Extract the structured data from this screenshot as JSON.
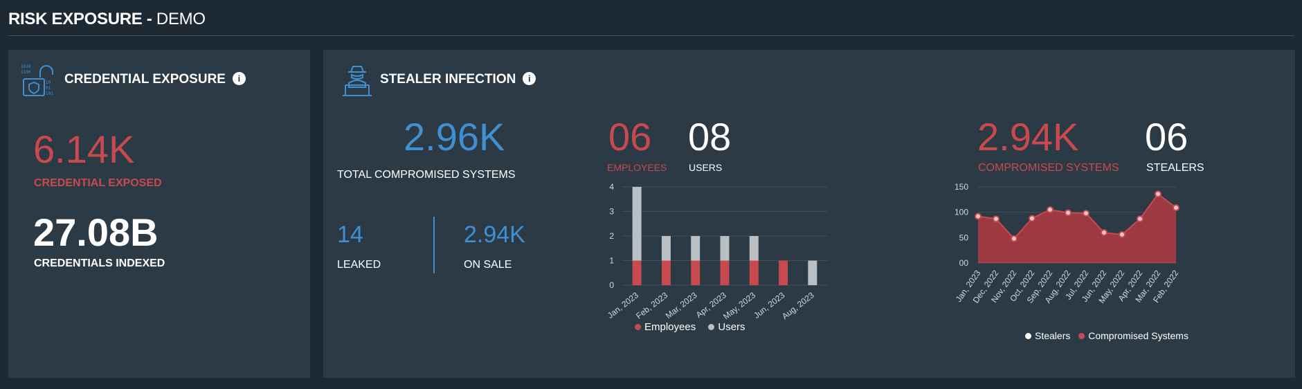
{
  "header": {
    "title_strong": "RISK EXPOSURE - ",
    "title_light": "DEMO"
  },
  "credential_exposure": {
    "title": "CREDENTIAL EXPOSURE",
    "icon": "credential-lock-icon",
    "exposed_value": "6.14K",
    "exposed_label": "CREDENTIAL EXPOSED",
    "indexed_value": "27.08B",
    "indexed_label": "CREDENTIALS INDEXED"
  },
  "stealer_infection": {
    "title": "STEALER INFECTION",
    "icon": "hacker-laptop-icon",
    "total_value": "2.96K",
    "total_label": "TOTAL COMPROMISED SYSTEMS",
    "leaked_value": "14",
    "leaked_label": "LEAKED",
    "on_sale_value": "2.94K",
    "on_sale_label": "ON SALE",
    "employees_value": "06",
    "employees_label": "EMPLOYEES",
    "users_value": "08",
    "users_label": "USERS",
    "compromised_value": "2.94K",
    "compromised_label": "COMPROMISED SYSTEMS",
    "stealers_value": "06",
    "stealers_label": "STEALERS"
  },
  "colors": {
    "red": "#c94a4e",
    "blue": "#3f8fd2",
    "gray": "#b9bfc3",
    "panel": "#2b3a45",
    "background": "#1e2a33"
  },
  "chart_data": [
    {
      "type": "bar",
      "stacked": true,
      "categories": [
        "Jan, 2023",
        "Feb, 2023",
        "Mar, 2023",
        "Apr, 2023",
        "May, 2023",
        "Jun, 2023",
        "Aug, 2023"
      ],
      "series": [
        {
          "name": "Employees",
          "values": [
            1,
            1,
            1,
            1,
            1,
            1,
            0
          ],
          "color": "#c94a4e"
        },
        {
          "name": "Users",
          "values": [
            3,
            1,
            1,
            1,
            1,
            0,
            1
          ],
          "color": "#b9bfc3"
        }
      ],
      "ylim": [
        0,
        4
      ],
      "yticks": [
        0,
        1,
        2,
        3,
        4
      ],
      "grid": true,
      "legend": "bottom"
    },
    {
      "type": "area",
      "categories": [
        "Jan, 2023",
        "Dec, 2022",
        "Nov, 2022",
        "Oct, 2022",
        "Sep, 2022",
        "Aug, 2022",
        "Jul, 2022",
        "Jun, 2022",
        "May, 2022",
        "Apr, 2022",
        "Mar, 2022",
        "Feb, 2022"
      ],
      "series": [
        {
          "name": "Stealers",
          "values": [
            1,
            1,
            1,
            1,
            1,
            1,
            1,
            1,
            1,
            1,
            1,
            1
          ],
          "color": "#b9bfc3"
        },
        {
          "name": "Compromised Systems",
          "values": [
            92,
            87,
            48,
            88,
            105,
            99,
            98,
            60,
            56,
            87,
            136,
            109
          ],
          "color": "#c94a4e"
        }
      ],
      "ylim": [
        0,
        150
      ],
      "yticks": [
        0,
        50,
        100,
        150
      ],
      "ytick_labels": [
        "00",
        "50",
        "100",
        "150"
      ],
      "grid": true,
      "legend": "bottom"
    }
  ]
}
